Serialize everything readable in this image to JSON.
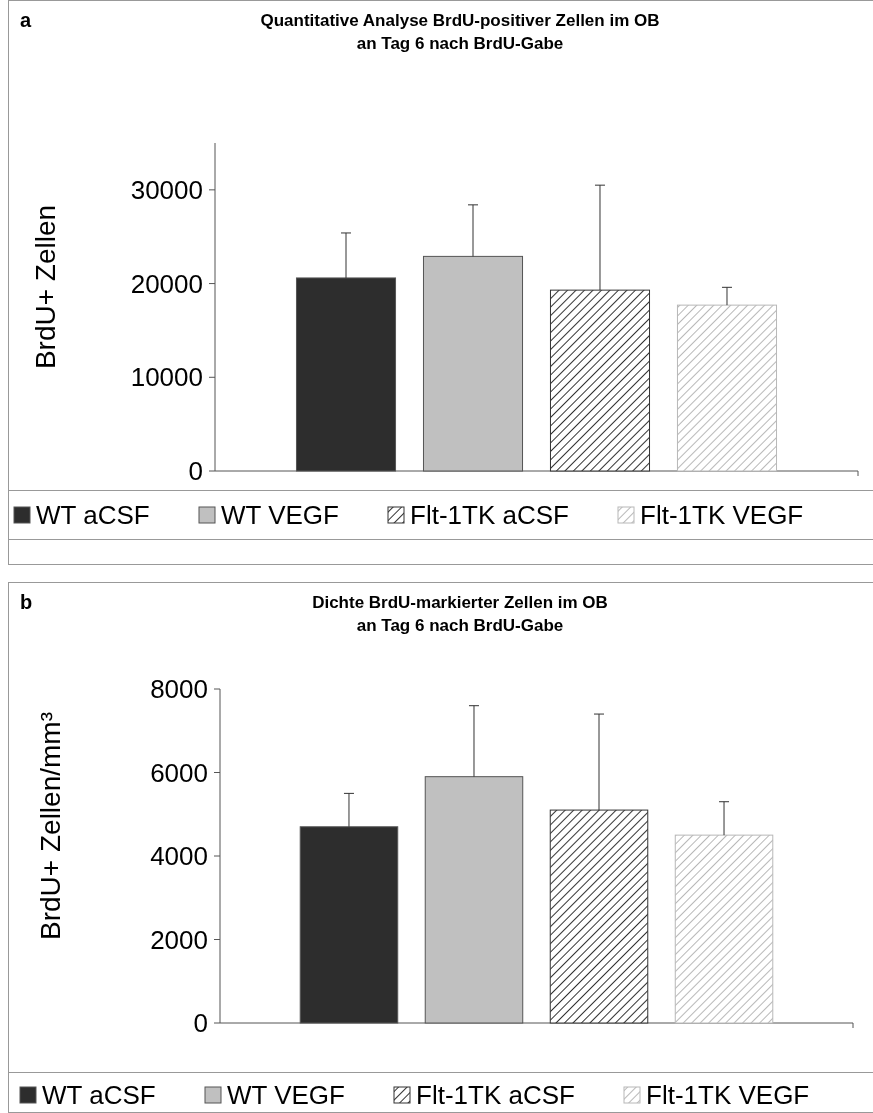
{
  "chart_data": [
    {
      "type": "bar",
      "title": "Quantitative Analyse BrdU-positiver Zellen im OB\nan Tag 6 nach BrdU-Gabe",
      "ylabel": "BrdU+ Zellen",
      "annotations": [
        "a"
      ],
      "categories": [
        null
      ],
      "series": [
        {
          "name": "WT aCSF",
          "color": "#2d2d2d",
          "values": [
            20600
          ],
          "errors": [
            [
              20600,
              25400
            ]
          ]
        },
        {
          "name": "WT VEGF",
          "color": "#c0c0c0",
          "values": [
            22900
          ],
          "errors": [
            [
              22900,
              28400
            ]
          ]
        },
        {
          "name": "Flt-1TK aCSF",
          "color": "#333333",
          "values": [
            19300
          ],
          "errors": [
            [
              19300,
              30500
            ]
          ]
        },
        {
          "name": "Flt-1TK VEGF",
          "color": "#b8b8b8",
          "values": [
            17700
          ],
          "errors": [
            [
              17700,
              19600
            ]
          ]
        }
      ],
      "ylim": [
        0,
        35000
      ],
      "yticks": [
        0,
        10000,
        20000,
        30000
      ],
      "legend": "bottom"
    },
    {
      "type": "bar",
      "title": "Dichte BrdU-markierter Zellen im OB\nan Tag 6 nach BrdU-Gabe",
      "ylabel": "BrdU+ Zellen/mm³",
      "annotations": [
        "b"
      ],
      "categories": [
        null
      ],
      "series": [
        {
          "name": "WT aCSF",
          "color": "#2d2d2d",
          "values": [
            4700
          ],
          "errors": [
            [
              4700,
              5500
            ]
          ]
        },
        {
          "name": "WT VEGF",
          "color": "#c0c0c0",
          "values": [
            5900
          ],
          "errors": [
            [
              5900,
              7600
            ]
          ]
        },
        {
          "name": "Flt-1TK aCSF",
          "color": "#333333",
          "values": [
            5100
          ],
          "errors": [
            [
              5100,
              7400
            ]
          ]
        },
        {
          "name": "Flt-1TK VEGF",
          "color": "#b8b8b8",
          "values": [
            4500
          ],
          "errors": [
            [
              4500,
              5300
            ]
          ]
        }
      ],
      "ylim": [
        0,
        8000
      ],
      "yticks": [
        0,
        2000,
        4000,
        6000,
        8000
      ],
      "legend": "bottom"
    }
  ]
}
